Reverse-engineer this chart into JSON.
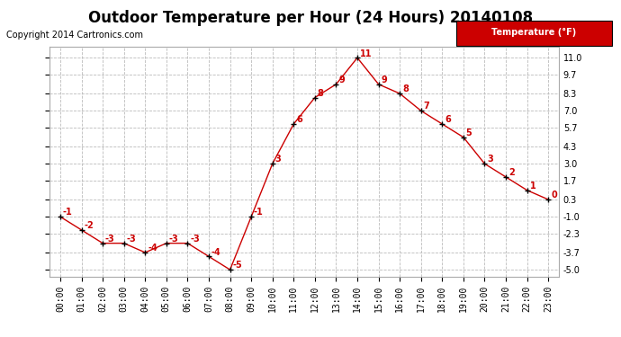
{
  "title": "Outdoor Temperature per Hour (24 Hours) 20140108",
  "copyright_text": "Copyright 2014 Cartronics.com",
  "legend_text": "Temperature (°F)",
  "hours": [
    "00:00",
    "01:00",
    "02:00",
    "03:00",
    "04:00",
    "05:00",
    "06:00",
    "07:00",
    "08:00",
    "09:00",
    "10:00",
    "11:00",
    "12:00",
    "13:00",
    "14:00",
    "15:00",
    "16:00",
    "17:00",
    "18:00",
    "19:00",
    "20:00",
    "21:00",
    "22:00",
    "23:00"
  ],
  "values": [
    -1.0,
    -2.0,
    -3.0,
    -3.0,
    -3.7,
    -3.0,
    -3.0,
    -4.0,
    -5.0,
    -1.0,
    3.0,
    6.0,
    8.0,
    9.0,
    11.0,
    9.0,
    8.3,
    7.0,
    6.0,
    5.0,
    3.0,
    2.0,
    1.0,
    0.3
  ],
  "labels": [
    "-1",
    "-2",
    "-3",
    "-3",
    "-4",
    "-3",
    "-3",
    "-4",
    "-5",
    "-1",
    "3",
    "6",
    "8",
    "9",
    "11",
    "9",
    "8",
    "7",
    "6",
    "5",
    "3",
    "2",
    "1",
    "0"
  ],
  "yticks": [
    -5.0,
    -3.7,
    -2.3,
    -1.0,
    0.3,
    1.7,
    3.0,
    4.3,
    5.7,
    7.0,
    8.3,
    9.7,
    11.0
  ],
  "ytick_labels": [
    "-5.0",
    "-3.7",
    "-2.3",
    "-1.0",
    "0.3",
    "1.7",
    "3.0",
    "4.3",
    "5.7",
    "7.0",
    "8.3",
    "9.7",
    "11.0"
  ],
  "ylim": [
    -5.5,
    11.8
  ],
  "line_color": "#cc0000",
  "marker_color": "#000000",
  "label_color": "#cc0000",
  "bg_color": "#ffffff",
  "grid_color": "#bbbbbb",
  "legend_bg": "#cc0000",
  "legend_text_color": "#ffffff",
  "title_fontsize": 12,
  "label_fontsize": 7,
  "tick_fontsize": 7,
  "copyright_fontsize": 7
}
